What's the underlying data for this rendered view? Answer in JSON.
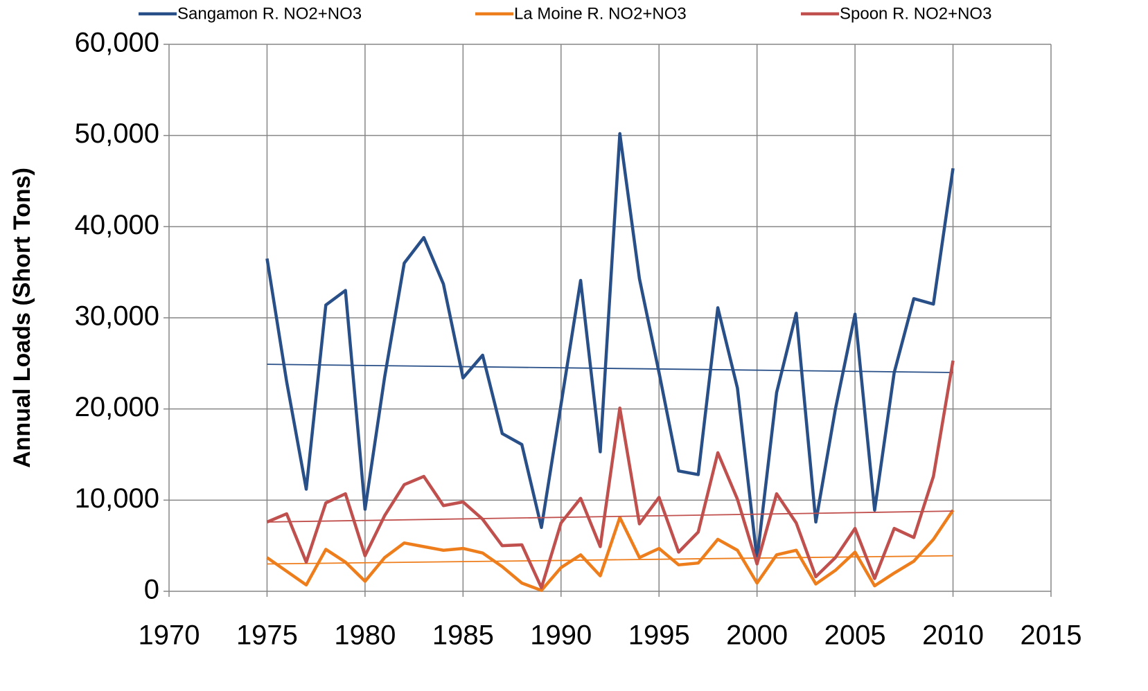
{
  "chart_data": {
    "type": "line",
    "y_label": "Annual Loads (Short Tons)",
    "x": [
      1975,
      1976,
      1977,
      1978,
      1979,
      1980,
      1981,
      1982,
      1983,
      1984,
      1985,
      1986,
      1987,
      1988,
      1989,
      1990,
      1991,
      1992,
      1993,
      1994,
      1995,
      1996,
      1997,
      1998,
      1999,
      2000,
      2001,
      2002,
      2003,
      2004,
      2005,
      2006,
      2007,
      2008,
      2009,
      2010
    ],
    "xlim": [
      1970,
      2015
    ],
    "xticks": [
      1970,
      1975,
      1980,
      1985,
      1990,
      1995,
      2000,
      2005,
      2010,
      2015
    ],
    "ylim": [
      0,
      60000
    ],
    "yticks": [
      0,
      {
        "value": 10000,
        "label": "10,000"
      },
      {
        "value": 20000,
        "label": "20,000"
      },
      {
        "value": 30000,
        "label": "30,000"
      },
      {
        "value": 40000,
        "label": "40,000"
      },
      {
        "value": 50000,
        "label": "50,000"
      },
      {
        "value": 60000,
        "label": "60,000"
      }
    ],
    "grid": true,
    "legend": "top",
    "series": [
      {
        "name": "Sangamon R. NO2+NO3",
        "color": "#284f87",
        "values": [
          36500,
          23000,
          11200,
          31400,
          33000,
          9000,
          23500,
          36000,
          38800,
          33700,
          23400,
          25900,
          17300,
          16100,
          7000,
          20500,
          34100,
          15300,
          50200,
          34300,
          24000,
          13200,
          12800,
          31100,
          22300,
          3500,
          21800,
          30500,
          7600,
          20000,
          30400,
          8900,
          24000,
          32100,
          31500,
          46400
        ],
        "trend": {
          "x": [
            1975,
            2010
          ],
          "values": [
            24900,
            24000
          ]
        }
      },
      {
        "name": "La Moine R. NO2+NO3",
        "color": "#ee7d1c",
        "values": [
          3700,
          2200,
          700,
          4600,
          3200,
          1100,
          3700,
          5300,
          4900,
          4500,
          4700,
          4200,
          2700,
          900,
          100,
          2600,
          4000,
          1700,
          8100,
          3700,
          4700,
          2900,
          3100,
          5700,
          4500,
          900,
          4000,
          4500,
          800,
          2300,
          4300,
          600,
          2000,
          3300,
          5700,
          8900
        ],
        "trend": {
          "x": [
            1975,
            2010
          ],
          "values": [
            3000,
            3900
          ]
        }
      },
      {
        "name": "Spoon R. NO2+NO3",
        "color": "#c0504d",
        "values": [
          7600,
          8500,
          3200,
          9700,
          10700,
          3900,
          8300,
          11700,
          12600,
          9400,
          9800,
          7900,
          5000,
          5100,
          400,
          7500,
          10200,
          4900,
          20100,
          7400,
          10300,
          4300,
          6500,
          15200,
          10100,
          3000,
          10700,
          7500,
          1600,
          3700,
          6900,
          1400,
          6900,
          5900,
          12600,
          25300
        ],
        "trend": {
          "x": [
            1975,
            2010
          ],
          "values": [
            7600,
            8800
          ]
        }
      }
    ]
  }
}
